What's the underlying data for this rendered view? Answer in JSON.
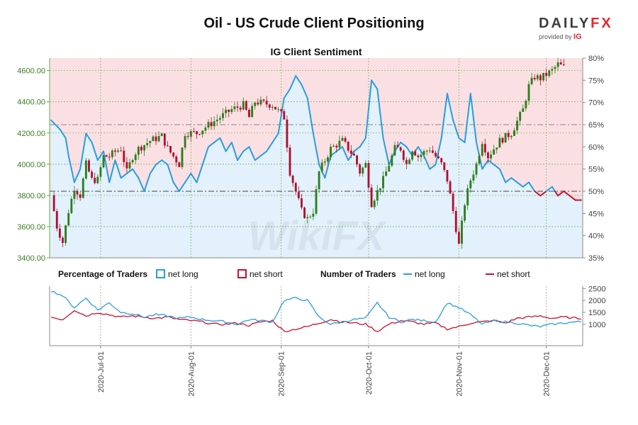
{
  "header": {
    "title": "Oil - US Crude Client Positioning",
    "logo_main": "DAILY",
    "logo_fx": "FX",
    "logo_sub": "provided by",
    "logo_ig": "IG"
  },
  "watermark": "WikiFX",
  "legend": {
    "pct_heading": "Percentage of Traders",
    "pct_long": "net long",
    "pct_short": "net short",
    "num_heading": "Number of Traders",
    "num_long": "net long",
    "num_short": "net short"
  },
  "colors": {
    "long": "#2b9ce0",
    "short": "#c8102e",
    "long_fill": "#e2f1fb",
    "short_fill": "#fbe0e3",
    "candle_up": "#2e7d1c",
    "candle_down": "#b01030"
  },
  "chart_data": {
    "type": "candlestick",
    "title": "IG Client Sentiment",
    "x_tick_labels": [
      "2020-Jul-01",
      "2020-Aug-01",
      "2020-Sep-01",
      "2020-Oct-01",
      "2020-Nov-01",
      "2020-Dec-01"
    ],
    "x_tick_days": [
      17,
      48,
      79,
      109,
      140,
      170
    ],
    "days": 183,
    "price_axis": {
      "range": [
        3400,
        4680
      ],
      "ticks": [
        "3400.00",
        "3600.00",
        "3800.00",
        "4000.00",
        "4200.00",
        "4400.00",
        "4600.00"
      ]
    },
    "pct_axis": {
      "range": [
        35,
        80
      ],
      "ticks": [
        "35%",
        "40%",
        "45%",
        "50%",
        "55%",
        "60%",
        "65%",
        "70%",
        "75%",
        "80%"
      ]
    },
    "count_axis": {
      "range": [
        100,
        2600
      ],
      "ticks": [
        "1000",
        "1500",
        "2000",
        "2500"
      ]
    },
    "price_close_keypoints": [
      [
        0,
        3800
      ],
      [
        2,
        3600
      ],
      [
        4,
        3500
      ],
      [
        6,
        3700
      ],
      [
        8,
        3850
      ],
      [
        10,
        3800
      ],
      [
        12,
        4000
      ],
      [
        14,
        3900
      ],
      [
        16,
        3900
      ],
      [
        18,
        4050
      ],
      [
        20,
        4050
      ],
      [
        22,
        4080
      ],
      [
        24,
        4100
      ],
      [
        26,
        3950
      ],
      [
        28,
        4050
      ],
      [
        30,
        4100
      ],
      [
        34,
        4150
      ],
      [
        38,
        4180
      ],
      [
        40,
        4100
      ],
      [
        44,
        4000
      ],
      [
        46,
        4200
      ],
      [
        50,
        4200
      ],
      [
        54,
        4250
      ],
      [
        58,
        4300
      ],
      [
        62,
        4350
      ],
      [
        66,
        4380
      ],
      [
        68,
        4300
      ],
      [
        70,
        4400
      ],
      [
        76,
        4380
      ],
      [
        80,
        4300
      ],
      [
        82,
        3950
      ],
      [
        86,
        3700
      ],
      [
        88,
        3650
      ],
      [
        90,
        3700
      ],
      [
        92,
        3950
      ],
      [
        96,
        4100
      ],
      [
        100,
        4150
      ],
      [
        104,
        4050
      ],
      [
        106,
        3950
      ],
      [
        108,
        4000
      ],
      [
        110,
        3750
      ],
      [
        114,
        3900
      ],
      [
        116,
        4000
      ],
      [
        118,
        4100
      ],
      [
        120,
        4100
      ],
      [
        122,
        4000
      ],
      [
        124,
        4100
      ],
      [
        126,
        4050
      ],
      [
        130,
        4100
      ],
      [
        134,
        4000
      ],
      [
        136,
        3900
      ],
      [
        138,
        3700
      ],
      [
        140,
        3480
      ],
      [
        142,
        3750
      ],
      [
        144,
        3900
      ],
      [
        146,
        4000
      ],
      [
        148,
        4150
      ],
      [
        150,
        4050
      ],
      [
        152,
        4100
      ],
      [
        154,
        4150
      ],
      [
        158,
        4200
      ],
      [
        162,
        4350
      ],
      [
        164,
        4500
      ],
      [
        166,
        4560
      ],
      [
        168,
        4550
      ],
      [
        172,
        4600
      ],
      [
        174,
        4640
      ],
      [
        176,
        4620
      ]
    ],
    "pct_long_keypoints": [
      [
        0,
        66
      ],
      [
        3,
        64
      ],
      [
        5,
        62
      ],
      [
        6,
        58
      ],
      [
        8,
        52
      ],
      [
        10,
        55
      ],
      [
        12,
        63
      ],
      [
        14,
        61
      ],
      [
        16,
        57
      ],
      [
        18,
        59
      ],
      [
        20,
        52
      ],
      [
        22,
        57
      ],
      [
        24,
        53
      ],
      [
        26,
        54
      ],
      [
        28,
        55
      ],
      [
        30,
        53
      ],
      [
        32,
        50
      ],
      [
        34,
        54
      ],
      [
        36,
        56
      ],
      [
        38,
        57
      ],
      [
        40,
        56
      ],
      [
        42,
        52
      ],
      [
        44,
        50
      ],
      [
        46,
        52
      ],
      [
        48,
        54
      ],
      [
        50,
        52
      ],
      [
        52,
        56
      ],
      [
        54,
        60
      ],
      [
        58,
        62
      ],
      [
        60,
        59
      ],
      [
        62,
        61
      ],
      [
        64,
        57
      ],
      [
        66,
        59
      ],
      [
        68,
        60
      ],
      [
        70,
        57
      ],
      [
        72,
        58
      ],
      [
        74,
        59
      ],
      [
        76,
        61
      ],
      [
        78,
        63
      ],
      [
        80,
        71
      ],
      [
        82,
        73
      ],
      [
        84,
        76
      ],
      [
        86,
        74
      ],
      [
        88,
        71
      ],
      [
        90,
        63
      ],
      [
        92,
        56
      ],
      [
        94,
        53
      ],
      [
        96,
        58
      ],
      [
        98,
        59
      ],
      [
        100,
        60
      ],
      [
        102,
        57
      ],
      [
        104,
        59
      ],
      [
        106,
        60
      ],
      [
        108,
        62
      ],
      [
        110,
        75
      ],
      [
        112,
        73
      ],
      [
        114,
        62
      ],
      [
        116,
        56
      ],
      [
        118,
        59
      ],
      [
        120,
        61
      ],
      [
        122,
        60
      ],
      [
        124,
        58
      ],
      [
        126,
        60
      ],
      [
        128,
        58
      ],
      [
        130,
        55
      ],
      [
        132,
        56
      ],
      [
        134,
        62
      ],
      [
        136,
        72
      ],
      [
        138,
        66
      ],
      [
        140,
        62
      ],
      [
        142,
        61
      ],
      [
        144,
        72
      ],
      [
        146,
        61
      ],
      [
        148,
        55
      ],
      [
        150,
        57
      ],
      [
        152,
        56
      ],
      [
        154,
        55
      ],
      [
        156,
        52
      ],
      [
        158,
        53
      ],
      [
        160,
        52
      ],
      [
        162,
        51
      ],
      [
        164,
        52
      ],
      [
        166,
        50
      ],
      [
        168,
        49
      ],
      [
        170,
        50
      ],
      [
        172,
        51
      ],
      [
        174,
        49
      ],
      [
        176,
        50
      ],
      [
        178,
        49
      ],
      [
        180,
        48
      ],
      [
        182,
        48
      ]
    ],
    "trader_long_keypoints": [
      [
        0,
        2400
      ],
      [
        4,
        2200
      ],
      [
        8,
        1700
      ],
      [
        12,
        2100
      ],
      [
        16,
        1600
      ],
      [
        20,
        1900
      ],
      [
        24,
        1500
      ],
      [
        28,
        1450
      ],
      [
        32,
        1300
      ],
      [
        36,
        1400
      ],
      [
        40,
        1350
      ],
      [
        44,
        1250
      ],
      [
        48,
        1300
      ],
      [
        52,
        1200
      ],
      [
        56,
        1150
      ],
      [
        60,
        1100
      ],
      [
        64,
        1000
      ],
      [
        68,
        1200
      ],
      [
        72,
        1150
      ],
      [
        76,
        1100
      ],
      [
        80,
        2000
      ],
      [
        84,
        2100
      ],
      [
        88,
        2000
      ],
      [
        92,
        1300
      ],
      [
        96,
        1000
      ],
      [
        100,
        1100
      ],
      [
        104,
        1200
      ],
      [
        108,
        1250
      ],
      [
        112,
        1900
      ],
      [
        116,
        1300
      ],
      [
        120,
        1100
      ],
      [
        124,
        1200
      ],
      [
        128,
        1150
      ],
      [
        132,
        1100
      ],
      [
        136,
        1900
      ],
      [
        140,
        1700
      ],
      [
        144,
        1400
      ],
      [
        148,
        1000
      ],
      [
        152,
        1150
      ],
      [
        156,
        1100
      ],
      [
        160,
        1050
      ],
      [
        164,
        950
      ],
      [
        168,
        900
      ],
      [
        172,
        1000
      ],
      [
        176,
        1050
      ],
      [
        180,
        1100
      ],
      [
        182,
        1100
      ]
    ],
    "trader_short_keypoints": [
      [
        0,
        1300
      ],
      [
        4,
        1200
      ],
      [
        8,
        1600
      ],
      [
        12,
        1350
      ],
      [
        16,
        1500
      ],
      [
        20,
        1400
      ],
      [
        24,
        1300
      ],
      [
        28,
        1350
      ],
      [
        32,
        1300
      ],
      [
        36,
        1250
      ],
      [
        40,
        1300
      ],
      [
        44,
        1200
      ],
      [
        48,
        1150
      ],
      [
        52,
        1100
      ],
      [
        56,
        1000
      ],
      [
        60,
        1000
      ],
      [
        64,
        1050
      ],
      [
        68,
        950
      ],
      [
        72,
        1100
      ],
      [
        76,
        1150
      ],
      [
        80,
        700
      ],
      [
        84,
        800
      ],
      [
        88,
        900
      ],
      [
        92,
        1050
      ],
      [
        96,
        1200
      ],
      [
        100,
        1100
      ],
      [
        104,
        1050
      ],
      [
        108,
        1000
      ],
      [
        112,
        700
      ],
      [
        116,
        1000
      ],
      [
        120,
        1150
      ],
      [
        124,
        1100
      ],
      [
        128,
        1000
      ],
      [
        132,
        1050
      ],
      [
        136,
        800
      ],
      [
        140,
        900
      ],
      [
        144,
        1050
      ],
      [
        148,
        1100
      ],
      [
        152,
        1150
      ],
      [
        156,
        1050
      ],
      [
        160,
        1250
      ],
      [
        164,
        1300
      ],
      [
        168,
        1350
      ],
      [
        172,
        1250
      ],
      [
        176,
        1300
      ],
      [
        180,
        1250
      ],
      [
        182,
        1250
      ]
    ]
  }
}
